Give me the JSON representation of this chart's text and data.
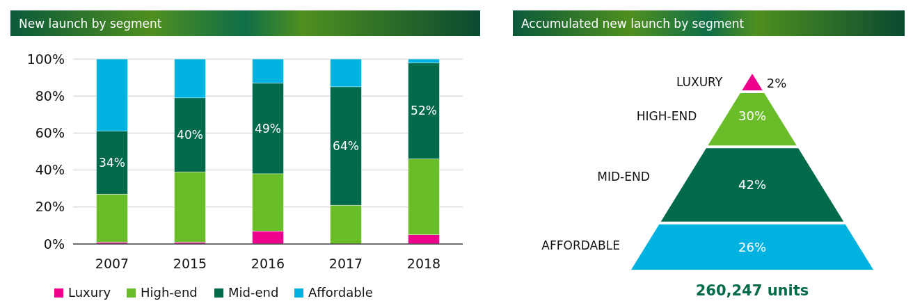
{
  "chart_data": [
    {
      "type": "bar",
      "title": "New launch by segment",
      "categories": [
        "2007",
        "2015",
        "2016",
        "2017",
        "2018"
      ],
      "stacked": true,
      "ylim": [
        0,
        100
      ],
      "yticks": [
        {
          "value": 0,
          "label": "0%"
        },
        {
          "value": 20,
          "label": "20%"
        },
        {
          "value": 40,
          "label": "40%"
        },
        {
          "value": 60,
          "label": "60%"
        },
        {
          "value": 80,
          "label": "80%"
        },
        {
          "value": 100,
          "label": "100%"
        }
      ],
      "grid": "y",
      "legend": "bottom",
      "series": [
        {
          "name": "Luxury",
          "color": "#ec008c",
          "values": [
            1,
            1,
            7,
            0,
            5
          ]
        },
        {
          "name": "High-end",
          "color": "#6abd28",
          "values": [
            26,
            38,
            31,
            21,
            41
          ]
        },
        {
          "name": "Mid-end",
          "color": "#006a4a",
          "values": [
            34,
            40,
            49,
            64,
            52
          ],
          "value_labels": [
            "34%",
            "40%",
            "49%",
            "64%",
            "52%"
          ]
        },
        {
          "name": "Affordable",
          "color": "#00b2e0",
          "values": [
            39,
            21,
            13,
            15,
            2
          ]
        }
      ]
    },
    {
      "type": "other",
      "title": "Accumulated new launch by segment",
      "categories": [
        "LUXURY",
        "HIGH-END",
        "MID-END",
        "AFFORDABLE"
      ],
      "values": [
        2,
        30,
        42,
        26
      ],
      "value_labels": [
        "2%",
        "30%",
        "42%",
        "26%"
      ],
      "colors": [
        "#ec008c",
        "#6abd28",
        "#006a4a",
        "#00b2e0"
      ],
      "annotations": [
        "260,247 units"
      ]
    }
  ]
}
